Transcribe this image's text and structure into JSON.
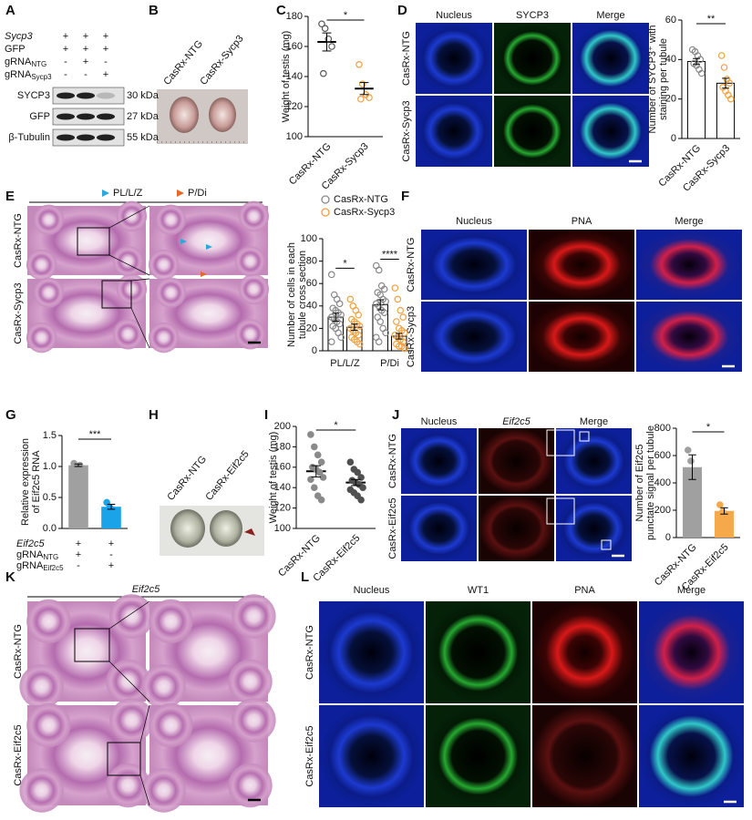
{
  "panels": {
    "A": {
      "label": "A",
      "rows": [
        {
          "text": "Sycp3",
          "marks": [
            "+",
            "+",
            "+"
          ]
        },
        {
          "text": "GFP",
          "marks": [
            "+",
            "+",
            "+"
          ]
        },
        {
          "text": "gRNA",
          "sub": "NTG",
          "marks": [
            "-",
            "+",
            "-"
          ]
        },
        {
          "text": "gRNA",
          "sub": "Sycp3",
          "marks": [
            "-",
            "-",
            "+"
          ]
        }
      ],
      "blots": [
        {
          "name": "SYCP3",
          "size": "30 kDa"
        },
        {
          "name": "GFP",
          "size": "27 kDa"
        },
        {
          "name": "β-Tubulin",
          "size": "55 kDa"
        }
      ]
    },
    "B": {
      "label": "B",
      "samples": [
        "CasRx-NTG",
        "CasRx-Sycp3"
      ]
    },
    "D": {
      "label": "D",
      "columns": [
        "Nucleus",
        "SYCP3",
        "Merge"
      ],
      "colors": [
        "#2166c0",
        "#22a02c",
        "#222222"
      ],
      "rows": [
        "CasRx-NTG",
        "CasRx-Sycp3"
      ]
    },
    "E": {
      "label": "E",
      "legend": [
        "PL/L/Z",
        "P/Di"
      ],
      "legend_colors": [
        "#2aa7e0",
        "#e8672a"
      ],
      "rows": [
        "CasRx-NTG",
        "CasRx-Sycp3"
      ]
    },
    "F": {
      "label": "F",
      "columns": [
        "Nucleus",
        "PNA",
        "Merge"
      ],
      "colors": [
        "#2166c0",
        "#d62728",
        "#222222"
      ],
      "rows": [
        "CasRx-NTG",
        "CasRx-Sycp3"
      ]
    },
    "G": {
      "label": "G",
      "rows": [
        {
          "text": "Eif2c5",
          "marks": [
            "+",
            "+"
          ]
        },
        {
          "text": "gRNA",
          "sub": "NTG",
          "marks": [
            "+",
            "-"
          ]
        },
        {
          "text": "gRNA",
          "sub": "Eif2c5",
          "marks": [
            "-",
            "+"
          ]
        }
      ]
    },
    "H": {
      "label": "H",
      "samples": [
        "CasRx-NTG",
        "CasRx-Eif2c5"
      ]
    },
    "J": {
      "label": "J",
      "columns": [
        "Nucleus",
        "Eif2c5",
        "Merge"
      ],
      "colors": [
        "#2166c0",
        "#d62728",
        "#222222"
      ],
      "rows": [
        "CasRx-NTG",
        "CasRx-Eif2c5"
      ]
    },
    "K": {
      "label": "K",
      "title": "Eif2c5",
      "rows": [
        "CasRx-NTG",
        "CasRx-Eif2c5"
      ]
    },
    "L": {
      "label": "L",
      "columns": [
        "Nucleus",
        "WT1",
        "PNA",
        "Merge"
      ],
      "colors": [
        "#2166c0",
        "#22a02c",
        "#d62728",
        "#222222"
      ],
      "rows": [
        "CasRx-NTG",
        "CasRx-Eif2c5"
      ]
    }
  },
  "chart_data": [
    {
      "type": "scatter",
      "panel": "C",
      "ylabel": [
        "Weight of testis (mg)"
      ],
      "categories": [
        "CasRx-NTG",
        "CasRx-Sycp3"
      ],
      "values": [
        163,
        132
      ],
      "errors": [
        6,
        4
      ],
      "points": [
        [
          175,
          172,
          165,
          160,
          142
        ],
        [
          148,
          135,
          128,
          126,
          125
        ]
      ],
      "colors": [
        "#555555",
        "#f0a040"
      ],
      "marker_fill": false,
      "ylim": [
        100,
        180
      ],
      "yticks": [
        100,
        120,
        140,
        160,
        180
      ],
      "significance": "*"
    },
    {
      "type": "bar",
      "ylabel": [
        "Number of SYCP3⁺ with",
        "staining per tubule"
      ],
      "categories": [
        "CasRx-NTG",
        "CasRx-Sycp3"
      ],
      "values": [
        39,
        28
      ],
      "errors": [
        1.5,
        2.5
      ],
      "points": [
        [
          45,
          44,
          42,
          40,
          38,
          37,
          35,
          33
        ],
        [
          42,
          36,
          30,
          28,
          26,
          24,
          22,
          20
        ]
      ],
      "colors": [
        "#888888",
        "#f0a040"
      ],
      "bar_style": "outline",
      "marker_fill": false,
      "ylim": [
        0,
        60
      ],
      "yticks": [
        0,
        20,
        40,
        60
      ],
      "significance": "**"
    },
    {
      "type": "bar",
      "ylabel": [
        "Number of cells in each",
        "tubule cross section"
      ],
      "categories": [
        "PL/L/Z",
        "P/Di"
      ],
      "series": [
        {
          "name": "CasRx-NTG",
          "color": "#888888",
          "values": [
            30,
            41
          ],
          "errors": [
            3.5,
            4.5
          ],
          "points": [
            [
              68,
              50,
              46,
              42,
              38,
              36,
              34,
              32,
              30,
              28,
              26,
              24,
              22,
              20,
              16,
              12,
              8
            ],
            [
              76,
              72,
              58,
              55,
              52,
              50,
              46,
              44,
              42,
              40,
              36,
              34,
              30,
              26,
              20,
              16,
              12,
              8
            ]
          ]
        },
        {
          "name": "CasRx-Sycp3",
          "color": "#f0a040",
          "values": [
            21,
            13
          ],
          "errors": [
            2.8,
            2.5
          ],
          "points": [
            [
              46,
              40,
              36,
              32,
              28,
              26,
              24,
              22,
              20,
              18,
              16,
              14,
              12,
              10,
              8,
              6
            ],
            [
              56,
              46,
              36,
              30,
              26,
              20,
              18,
              16,
              14,
              12,
              10,
              8,
              6,
              4,
              4,
              2
            ]
          ]
        }
      ],
      "bar_style": "outline",
      "marker_fill": false,
      "ylim": [
        0,
        100
      ],
      "yticks": [
        0,
        20,
        40,
        60,
        80,
        100
      ],
      "significance": [
        "*",
        "****"
      ]
    },
    {
      "type": "bar",
      "ylabel": [
        "Relative expression",
        "of Eif2c5 RNA"
      ],
      "categories": [
        null,
        null
      ],
      "values": [
        1.02,
        0.35
      ],
      "errors": [
        0.02,
        0.04
      ],
      "points": [
        [
          1.05,
          1.0,
          1.02
        ],
        [
          0.42,
          0.34,
          0.3
        ]
      ],
      "colors": [
        "#a0a0a0",
        "#1aa3e8"
      ],
      "bar_style": "filled",
      "marker_fill": true,
      "ylim": [
        0,
        1.5
      ],
      "yticks": [
        {
          "value": 0,
          "label": "0.0"
        },
        0.5,
        {
          "value": 1,
          "label": "1.0"
        },
        1.5
      ],
      "significance": "***"
    },
    {
      "type": "scatter",
      "panel": "I",
      "ylabel": [
        "Weight of testis (mg)"
      ],
      "categories": [
        "CasRx-NTG",
        "CasRx-Eif2c5"
      ],
      "values": [
        156,
        145
      ],
      "errors": [
        5.5,
        3
      ],
      "points": [
        [
          192,
          180,
          172,
          165,
          160,
          158,
          155,
          150,
          148,
          140,
          132,
          128
        ],
        [
          165,
          158,
          155,
          150,
          147,
          145,
          143,
          140,
          138,
          135,
          132,
          128
        ]
      ],
      "colors": [
        "#8a8a8a",
        "#505050"
      ],
      "marker_fill": true,
      "ylim": [
        100,
        200
      ],
      "yticks": [
        100,
        120,
        140,
        160,
        180,
        200
      ],
      "significance": "*"
    },
    {
      "type": "bar",
      "ylabel": [
        "Number of Eif2c5",
        "punctate signal per tubule"
      ],
      "categories": [
        "CasRx-NTG",
        "CasRx-Eif2c5"
      ],
      "values": [
        515,
        195
      ],
      "errors": [
        90,
        23
      ],
      "points": [
        [
          640,
          560,
          350
        ],
        [
          240,
          190,
          160
        ]
      ],
      "colors": [
        "#a0a0a0",
        "#f5a94a"
      ],
      "bar_style": "filled",
      "marker_fill": true,
      "ylim": [
        0,
        800
      ],
      "yticks": [
        0,
        200,
        400,
        600,
        800
      ],
      "significance": "*"
    }
  ]
}
